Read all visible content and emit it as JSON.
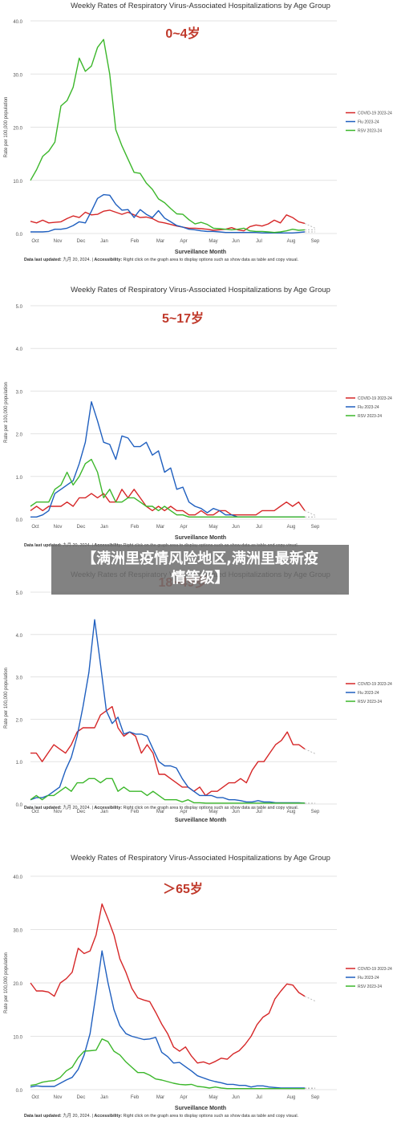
{
  "overlay": {
    "title_line1": "【满洲里疫情风险地区,满洲里最新疫",
    "title_line2": "情等级】"
  },
  "chart_data": [
    {
      "type": "line",
      "title": "Weekly Rates of Respiratory Virus-Associated Hospitalizations by Age Group",
      "subtitle": "0~4岁",
      "ylabel": "Rate per 100,000 population",
      "xlabel": "Surveillance Month",
      "ylim": [
        0,
        40
      ],
      "yticks": [
        "0.0",
        "10.0",
        "20.0",
        "30.0",
        "40.0"
      ],
      "xticks": [
        "Oct",
        "Nov",
        "Dec",
        "Jan",
        "Feb",
        "Mar",
        "Apr",
        "May",
        "Jun",
        "Jul",
        "Aug",
        "Sep"
      ],
      "legend_position": "right",
      "footnote": {
        "bold1": "Data last updated:",
        "text1": " 九月 20, 2024. | ",
        "bold2": "Accessibility:",
        "text2": " Right click on the graph area to display options such as show data as table and copy visual."
      },
      "series": [
        {
          "name": "COVID-19 2023-24",
          "color": "#d62728",
          "values": [
            2.3,
            2.0,
            2.5,
            2.0,
            2.1,
            2.2,
            2.8,
            3.3,
            3.0,
            4.0,
            3.5,
            3.6,
            4.2,
            4.4,
            4.0,
            3.6,
            4.0,
            3.5,
            3.0,
            3.1,
            2.8,
            2.2,
            2.0,
            1.7,
            1.4,
            1.2,
            1.0,
            1.0,
            0.9,
            0.8,
            0.6,
            0.7,
            0.8,
            1.1,
            0.7,
            0.5,
            1.3,
            1.6,
            1.4,
            1.8,
            2.5,
            2.0,
            3.5,
            3.0,
            2.2,
            1.9
          ]
        },
        {
          "name": "Flu 2023-24",
          "color": "#1f5fbf",
          "values": [
            0.3,
            0.3,
            0.3,
            0.4,
            0.8,
            0.8,
            1.0,
            1.5,
            2.2,
            2.0,
            4.2,
            6.6,
            7.3,
            7.2,
            5.5,
            4.4,
            4.5,
            3.0,
            4.5,
            3.6,
            3.0,
            4.3,
            2.9,
            2.2,
            1.5,
            1.2,
            0.8,
            0.7,
            0.5,
            0.4,
            0.4,
            0.3,
            0.2,
            0.2,
            0.2,
            0.2,
            0.2,
            0.2,
            0.1,
            0.1,
            0.1,
            0.1,
            0.1,
            0.1,
            0.2,
            0.3
          ]
        },
        {
          "name": "RSV 2023-24",
          "color": "#3cb72b",
          "values": [
            10.0,
            12.0,
            14.5,
            15.5,
            17.2,
            24.0,
            25.0,
            27.5,
            33.0,
            30.5,
            31.5,
            35.0,
            36.5,
            30.0,
            19.5,
            16.5,
            14.0,
            11.5,
            11.3,
            9.5,
            8.3,
            6.5,
            5.8,
            4.7,
            3.7,
            3.6,
            2.6,
            1.8,
            2.1,
            1.7,
            1.0,
            0.9,
            0.8,
            0.7,
            0.8,
            1.0,
            0.5,
            0.4,
            0.4,
            0.3,
            0.2,
            0.3,
            0.5,
            0.8,
            0.6,
            0.7
          ]
        }
      ]
    },
    {
      "type": "line",
      "title": "Weekly Rates of Respiratory Virus-Associated Hospitalizations by Age Group",
      "subtitle": "5~17岁",
      "ylabel": "Rate per 100,000 population",
      "xlabel": "Surveillance Month",
      "ylim": [
        0,
        5
      ],
      "yticks": [
        "0.0",
        "1.0",
        "2.0",
        "3.0",
        "4.0",
        "5.0"
      ],
      "xticks": [
        "Oct",
        "Nov",
        "Dec",
        "Jan",
        "Feb",
        "Mar",
        "Apr",
        "May",
        "Jun",
        "Jul",
        "Aug",
        "Sep"
      ],
      "legend_position": "right",
      "footnote": {
        "bold1": "Data last updated:",
        "text1": " 九月 20, 2024. | ",
        "bold2": "Accessibility:",
        "text2": " Right click on the graph area to display options such as show data as table and copy visual."
      },
      "series": [
        {
          "name": "COVID-19 2023-24",
          "color": "#d62728",
          "values": [
            0.2,
            0.3,
            0.2,
            0.3,
            0.3,
            0.3,
            0.4,
            0.3,
            0.5,
            0.5,
            0.6,
            0.5,
            0.6,
            0.4,
            0.4,
            0.7,
            0.5,
            0.7,
            0.5,
            0.3,
            0.2,
            0.3,
            0.2,
            0.3,
            0.2,
            0.2,
            0.1,
            0.1,
            0.2,
            0.1,
            0.1,
            0.2,
            0.2,
            0.1,
            0.1,
            0.1,
            0.1,
            0.1,
            0.2,
            0.2,
            0.2,
            0.3,
            0.4,
            0.3,
            0.4,
            0.2
          ]
        },
        {
          "name": "Flu 2023-24",
          "color": "#1f5fbf",
          "values": [
            0.05,
            0.05,
            0.1,
            0.2,
            0.6,
            0.7,
            0.8,
            0.9,
            1.3,
            1.8,
            2.75,
            2.3,
            1.8,
            1.75,
            1.4,
            1.95,
            1.9,
            1.7,
            1.7,
            1.8,
            1.5,
            1.6,
            1.1,
            1.2,
            0.7,
            0.75,
            0.4,
            0.3,
            0.25,
            0.15,
            0.25,
            0.2,
            0.1,
            0.1,
            0.05,
            0.05,
            0.05,
            0.05,
            0.05,
            0.05,
            0.05,
            0.05,
            0.05,
            0.05,
            0.05,
            0.05
          ]
        },
        {
          "name": "RSV 2023-24",
          "color": "#3cb72b",
          "values": [
            0.3,
            0.4,
            0.4,
            0.4,
            0.7,
            0.8,
            1.1,
            0.8,
            1.0,
            1.3,
            1.4,
            1.1,
            0.5,
            0.7,
            0.4,
            0.4,
            0.5,
            0.5,
            0.4,
            0.3,
            0.3,
            0.2,
            0.3,
            0.2,
            0.1,
            0.1,
            0.05,
            0.05,
            0.05,
            0.05,
            0.05,
            0.05,
            0.05,
            0.05,
            0.05,
            0.05,
            0.05,
            0.05,
            0.05,
            0.05,
            0.05,
            0.05,
            0.05,
            0.05,
            0.05,
            0.05
          ]
        }
      ]
    },
    {
      "type": "line",
      "title": "Weekly Rates of Respiratory Virus-Associated Hospitalizations by Age Group",
      "subtitle": "18~49岁",
      "ylabel": "Rate per 100,000 population",
      "xlabel": "Surveillance Month",
      "ylim": [
        0,
        5
      ],
      "yticks": [
        "0.0",
        "1.0",
        "2.0",
        "3.0",
        "4.0",
        "5.0"
      ],
      "xticks": [
        "Oct",
        "Nov",
        "Dec",
        "Jan",
        "Feb",
        "Mar",
        "Apr",
        "May",
        "Jun",
        "Jul",
        "Aug",
        "Sep"
      ],
      "legend_position": "right",
      "footnote": {
        "bold1": "Data last updated:",
        "text1": " 九月 20, 2024. | ",
        "bold2": "Accessibility:",
        "text2": " Right click on the graph area to display options such as show data as table and copy visual."
      },
      "series": [
        {
          "name": "COVID-19 2023-24",
          "color": "#d62728",
          "values": [
            1.2,
            1.2,
            1.0,
            1.2,
            1.4,
            1.3,
            1.2,
            1.4,
            1.7,
            1.8,
            1.8,
            1.8,
            2.1,
            2.2,
            2.3,
            1.8,
            1.6,
            1.7,
            1.6,
            1.2,
            1.4,
            1.2,
            0.7,
            0.7,
            0.6,
            0.5,
            0.4,
            0.4,
            0.3,
            0.4,
            0.2,
            0.3,
            0.3,
            0.4,
            0.5,
            0.5,
            0.6,
            0.5,
            0.8,
            1.0,
            1.0,
            1.2,
            1.4,
            1.5,
            1.7,
            1.4,
            1.4,
            1.3
          ]
        },
        {
          "name": "Flu 2023-24",
          "color": "#1f5fbf",
          "values": [
            0.1,
            0.15,
            0.15,
            0.2,
            0.3,
            0.4,
            0.8,
            1.1,
            1.6,
            2.3,
            3.1,
            4.35,
            3.3,
            2.2,
            1.9,
            2.05,
            1.65,
            1.7,
            1.65,
            1.65,
            1.6,
            1.3,
            1.0,
            0.9,
            0.9,
            0.85,
            0.6,
            0.4,
            0.3,
            0.2,
            0.2,
            0.2,
            0.15,
            0.15,
            0.1,
            0.1,
            0.08,
            0.05,
            0.05,
            0.08,
            0.05,
            0.05,
            0.03,
            0.03,
            0.03,
            0.03,
            0.03,
            0.02
          ]
        },
        {
          "name": "RSV 2023-24",
          "color": "#3cb72b",
          "values": [
            0.1,
            0.2,
            0.1,
            0.2,
            0.2,
            0.3,
            0.4,
            0.3,
            0.5,
            0.5,
            0.6,
            0.6,
            0.5,
            0.6,
            0.6,
            0.3,
            0.4,
            0.3,
            0.3,
            0.3,
            0.2,
            0.3,
            0.2,
            0.1,
            0.1,
            0.1,
            0.05,
            0.1,
            0.03,
            0.03,
            0.02,
            0.02,
            0.02,
            0.02,
            0.02,
            0.02,
            0.02,
            0.02,
            0.02,
            0.02,
            0.02,
            0.02,
            0.02,
            0.02,
            0.02,
            0.02,
            0.02,
            0.02
          ]
        }
      ]
    },
    {
      "type": "line",
      "title": "Weekly Rates of Respiratory Virus-Associated Hospitalizations by Age Group",
      "subtitle": "＞65岁",
      "ylabel": "Rate per 100,000 population",
      "xlabel": "Surveillance Month",
      "ylim": [
        0,
        40
      ],
      "yticks": [
        "0.0",
        "10.0",
        "20.0",
        "30.0",
        "40.0"
      ],
      "xticks": [
        "Oct",
        "Nov",
        "Dec",
        "Jan",
        "Feb",
        "Mar",
        "Apr",
        "May",
        "Jun",
        "Jul",
        "Aug",
        "Sep"
      ],
      "legend_position": "right",
      "footnote": {
        "bold1": "Data last updated:",
        "text1": " 九月 20, 2024. | ",
        "bold2": "Accessibility:",
        "text2": " Right click on the graph area to display options such as show data as table and copy visual."
      },
      "series": [
        {
          "name": "COVID-19 2023-24",
          "color": "#d62728",
          "values": [
            20.0,
            18.5,
            18.5,
            18.3,
            17.5,
            20.0,
            20.8,
            22.0,
            26.5,
            25.5,
            26.0,
            29.0,
            34.8,
            32.0,
            29.0,
            24.5,
            22.0,
            19.0,
            17.2,
            16.8,
            16.5,
            14.5,
            12.3,
            10.5,
            8.0,
            7.2,
            8.0,
            6.3,
            5.0,
            5.2,
            4.8,
            5.3,
            5.9,
            5.7,
            6.7,
            7.3,
            8.5,
            10.0,
            12.2,
            13.6,
            14.3,
            17.0,
            18.5,
            19.8,
            19.6,
            18.2,
            17.5
          ]
        },
        {
          "name": "Flu 2023-24",
          "color": "#1f5fbf",
          "values": [
            0.5,
            0.7,
            0.6,
            0.6,
            0.6,
            1.2,
            1.8,
            2.3,
            3.8,
            6.5,
            10.5,
            18.0,
            26.0,
            20.0,
            15.0,
            12.0,
            10.5,
            10.0,
            9.7,
            9.4,
            9.5,
            9.8,
            7.0,
            6.2,
            5.0,
            5.1,
            4.3,
            3.5,
            2.6,
            2.2,
            1.8,
            1.5,
            1.3,
            1.0,
            1.0,
            0.8,
            0.8,
            0.5,
            0.7,
            0.7,
            0.5,
            0.4,
            0.3,
            0.3,
            0.3,
            0.3,
            0.3
          ]
        },
        {
          "name": "RSV 2023-24",
          "color": "#3cb72b",
          "values": [
            0.8,
            1.0,
            1.4,
            1.6,
            1.7,
            2.3,
            3.5,
            4.2,
            6.0,
            7.2,
            7.3,
            7.4,
            9.5,
            9.0,
            7.2,
            6.5,
            5.2,
            4.2,
            3.2,
            3.2,
            2.7,
            2.0,
            1.8,
            1.5,
            1.2,
            1.0,
            0.9,
            1.0,
            0.6,
            0.5,
            0.3,
            0.5,
            0.3,
            0.2,
            0.2,
            0.2,
            0.2,
            0.2,
            0.2,
            0.2,
            0.2,
            0.2,
            0.2,
            0.2,
            0.2,
            0.2,
            0.2
          ]
        }
      ]
    }
  ]
}
